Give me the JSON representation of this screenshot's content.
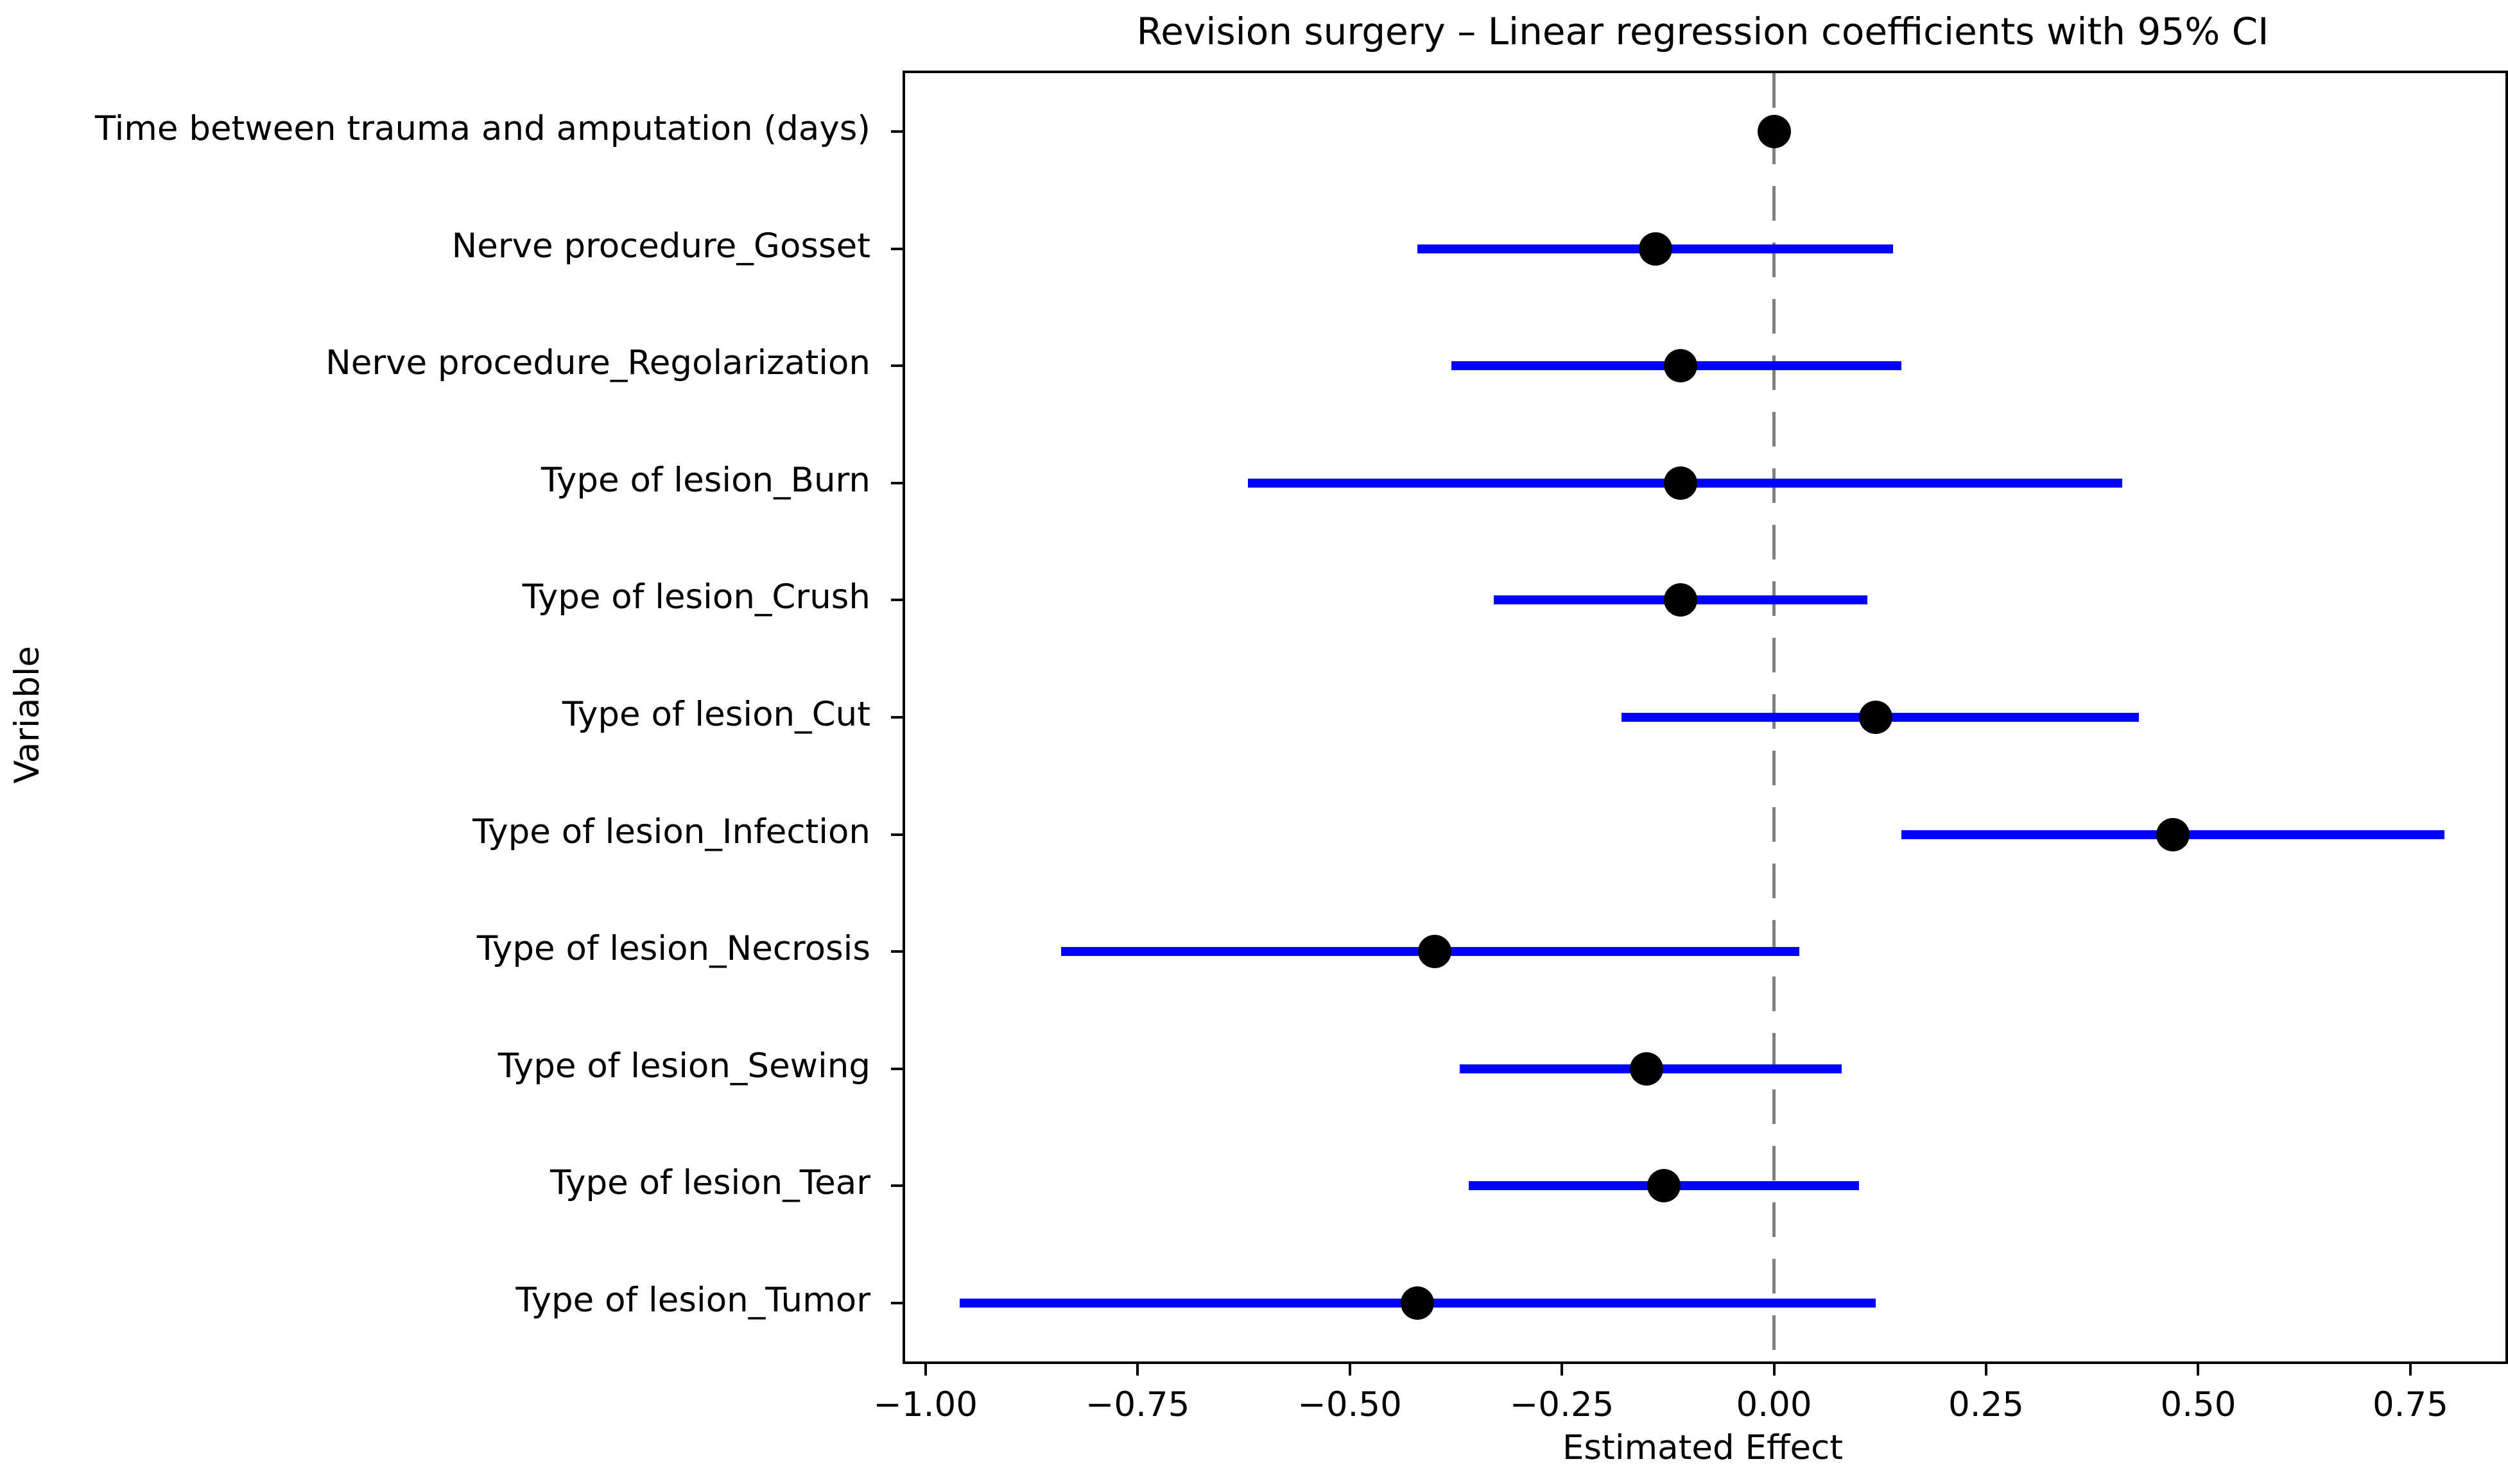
{
  "chart_data": {
    "type": "scatter",
    "subtype": "forest-plot",
    "title": "Revision surgery – Linear regression coefficients with 95% CI",
    "xlabel": "Estimated Effect",
    "ylabel": "Variable",
    "xlim": [
      -1.024,
      0.862
    ],
    "grid": false,
    "legend": false,
    "x_ticks": [
      -1.0,
      -0.75,
      -0.5,
      -0.25,
      0.0,
      0.25,
      0.5,
      0.75
    ],
    "x_tick_labels": [
      "−1.00",
      "−0.75",
      "−0.50",
      "−0.25",
      "0.00",
      "0.25",
      "0.50",
      "0.75"
    ],
    "zero_line": {
      "x": 0.0,
      "style": "dashed",
      "color": "#808080"
    },
    "series": [
      {
        "name": "Linear regression coefficient with 95% CI",
        "marker_color": "#000000",
        "ci_color": "#0000ff",
        "points": [
          {
            "label": "Time between trauma and amputation (days)",
            "estimate": 0.0,
            "ci_low": -0.01,
            "ci_high": 0.01
          },
          {
            "label": "Nerve procedure_Gosset",
            "estimate": -0.14,
            "ci_low": -0.42,
            "ci_high": 0.14
          },
          {
            "label": "Nerve procedure_Regolarization",
            "estimate": -0.11,
            "ci_low": -0.38,
            "ci_high": 0.15
          },
          {
            "label": "Type of lesion_Burn",
            "estimate": -0.11,
            "ci_low": -0.62,
            "ci_high": 0.41
          },
          {
            "label": "Type of lesion_Crush",
            "estimate": -0.11,
            "ci_low": -0.33,
            "ci_high": 0.11
          },
          {
            "label": "Type of lesion_Cut",
            "estimate": 0.12,
            "ci_low": -0.18,
            "ci_high": 0.43
          },
          {
            "label": "Type of lesion_Infection",
            "estimate": 0.47,
            "ci_low": 0.15,
            "ci_high": 0.79
          },
          {
            "label": "Type of lesion_Necrosis",
            "estimate": -0.4,
            "ci_low": -0.84,
            "ci_high": 0.03
          },
          {
            "label": "Type of lesion_Sewing",
            "estimate": -0.15,
            "ci_low": -0.37,
            "ci_high": 0.08
          },
          {
            "label": "Type of lesion_Tear",
            "estimate": -0.13,
            "ci_low": -0.36,
            "ci_high": 0.1
          },
          {
            "label": "Type of lesion_Tumor",
            "estimate": -0.42,
            "ci_low": -0.96,
            "ci_high": 0.12
          }
        ]
      }
    ]
  }
}
